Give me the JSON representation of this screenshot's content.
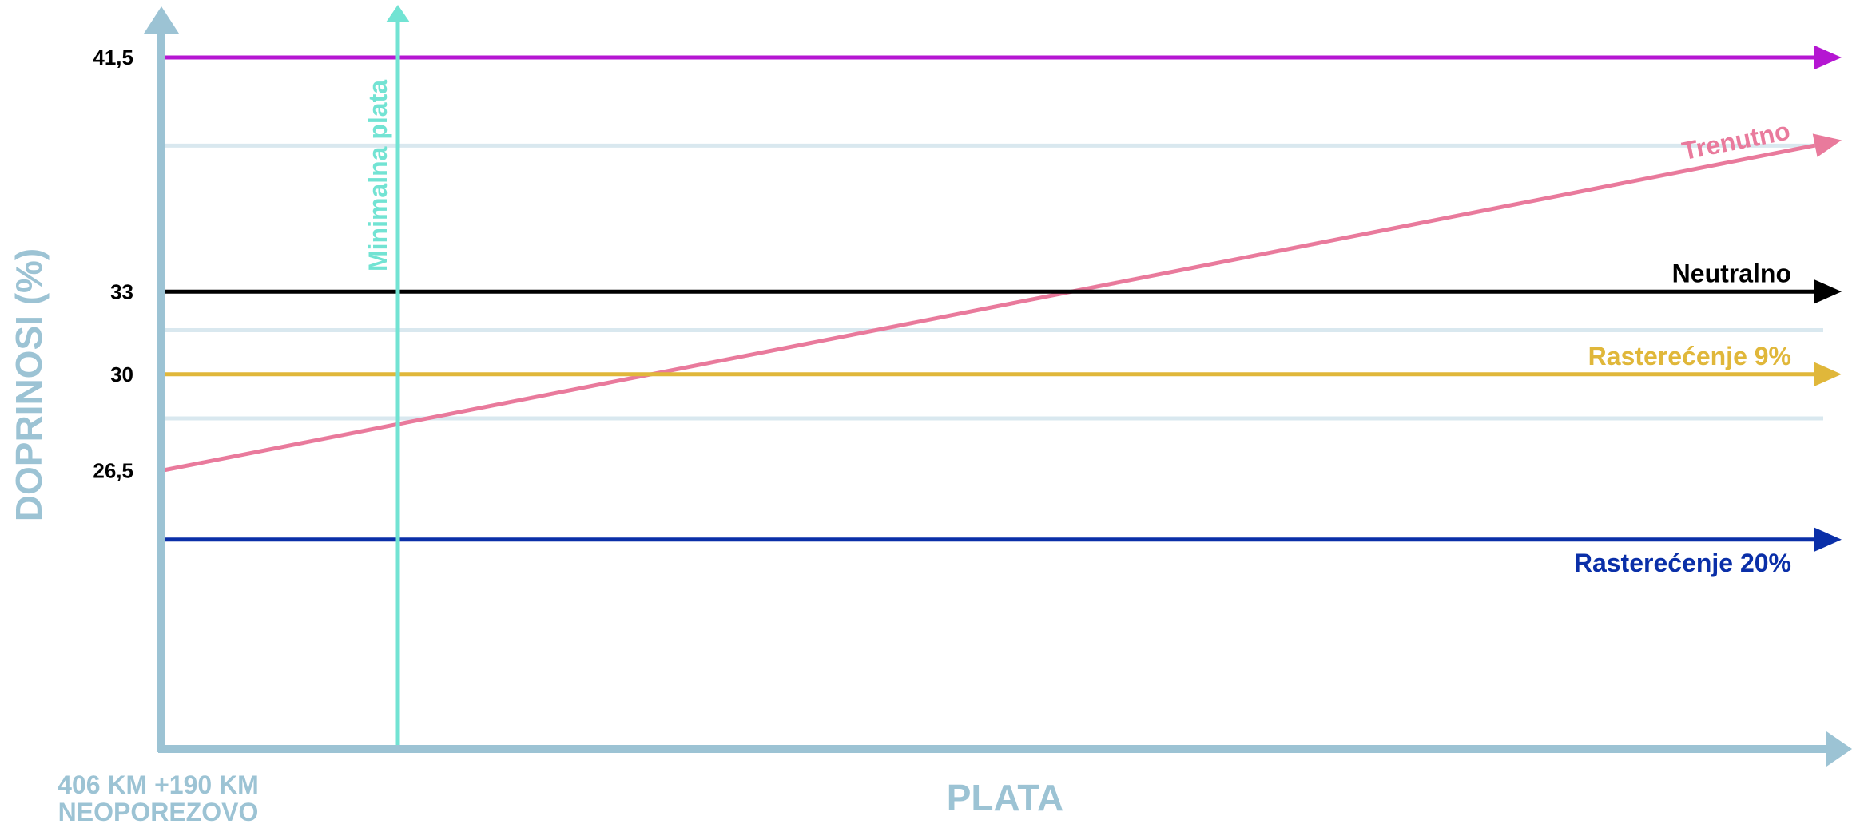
{
  "chart_data": {
    "type": "line",
    "title": "",
    "ylabel": "DOPRINOSI (%)",
    "xlabel": "PLATA",
    "x_origin_label_line1": "406 KM +190 KM",
    "x_origin_label_line2": "NEOPOREZOVO",
    "y_ticks": [
      {
        "value": 41.5,
        "label": "41,5"
      },
      {
        "value": 33,
        "label": "33"
      },
      {
        "value": 30,
        "label": "30"
      },
      {
        "value": 26.5,
        "label": "26,5"
      }
    ],
    "grid": true,
    "x_range": [
      0,
      1
    ],
    "reference_line": {
      "label": "Minimalna plata"
    },
    "series": [
      {
        "name": "Trenutno",
        "color": "#e97a9c",
        "start": 26.5,
        "end": 38.5
      },
      {
        "name": "Neutralno",
        "color": "#000000",
        "start": 33,
        "end": 33
      },
      {
        "name": "Rasterećenje 9%",
        "color": "#e0b73a",
        "start": 30,
        "end": 30
      },
      {
        "name": "Rasterećenje 20%",
        "color": "#0a2fa8",
        "start": 24,
        "end": 24
      },
      {
        "name": "",
        "color": "#b516d2",
        "start": 41.5,
        "end": 41.5
      }
    ]
  },
  "colors": {
    "axis": "#9cc3d4",
    "grid": "#d9e8ef",
    "reference": "#72e3d3"
  }
}
